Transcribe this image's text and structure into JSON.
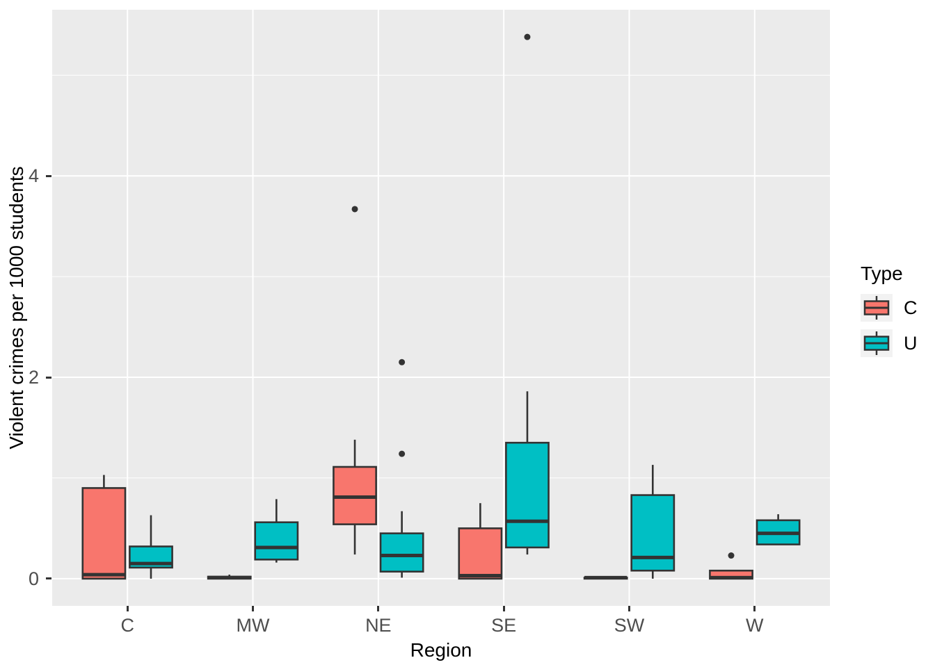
{
  "chart_data": {
    "type": "boxplot",
    "subtype": "grouped-dodged-boxplot",
    "title": "",
    "xlabel": "Region",
    "ylabel": "Violent crimes per 1000 students",
    "categories": [
      "C",
      "MW",
      "NE",
      "SE",
      "SW",
      "W"
    ],
    "y_ticks": [
      0,
      2,
      4
    ],
    "y_tick_labels": [
      "0",
      "2",
      "4"
    ],
    "y_minor_gridlines": [
      1,
      3,
      5
    ],
    "ylim": [
      -0.27,
      5.65
    ],
    "grid": "white major+minor horizontal, white major vertical on gray panel",
    "legend": {
      "title": "Type",
      "position": "right",
      "entries": [
        {
          "label": "C",
          "color": "#F8766D"
        },
        {
          "label": "U",
          "color": "#00BFC4"
        }
      ]
    },
    "series": [
      {
        "name": "C",
        "color": "#F8766D",
        "boxes": [
          {
            "category": "C",
            "whisker_low": 0.0,
            "q1": 0.0,
            "median": 0.04,
            "q3": 0.9,
            "whisker_high": 1.03,
            "outliers": []
          },
          {
            "category": "MW",
            "whisker_low": 0.0,
            "q1": 0.0,
            "median": 0.01,
            "q3": 0.02,
            "whisker_high": 0.04,
            "outliers": []
          },
          {
            "category": "NE",
            "whisker_low": 0.24,
            "q1": 0.54,
            "median": 0.81,
            "q3": 1.11,
            "whisker_high": 1.38,
            "outliers": [
              3.67
            ]
          },
          {
            "category": "SE",
            "whisker_low": 0.0,
            "q1": 0.0,
            "median": 0.03,
            "q3": 0.5,
            "whisker_high": 0.75,
            "outliers": []
          },
          {
            "category": "SW",
            "whisker_low": 0.0,
            "q1": 0.0,
            "median": 0.01,
            "q3": 0.01,
            "whisker_high": 0.01,
            "outliers": []
          },
          {
            "category": "W",
            "whisker_low": 0.0,
            "q1": 0.0,
            "median": 0.01,
            "q3": 0.08,
            "whisker_high": 0.08,
            "outliers": [
              0.23
            ]
          }
        ]
      },
      {
        "name": "U",
        "color": "#00BFC4",
        "boxes": [
          {
            "category": "C",
            "whisker_low": 0.0,
            "q1": 0.11,
            "median": 0.15,
            "q3": 0.32,
            "whisker_high": 0.63,
            "outliers": []
          },
          {
            "category": "MW",
            "whisker_low": 0.16,
            "q1": 0.19,
            "median": 0.31,
            "q3": 0.56,
            "whisker_high": 0.79,
            "outliers": []
          },
          {
            "category": "NE",
            "whisker_low": 0.01,
            "q1": 0.07,
            "median": 0.23,
            "q3": 0.45,
            "whisker_high": 0.67,
            "outliers": [
              1.24,
              2.15
            ]
          },
          {
            "category": "SE",
            "whisker_low": 0.24,
            "q1": 0.31,
            "median": 0.57,
            "q3": 1.35,
            "whisker_high": 1.86,
            "outliers": [
              5.38
            ]
          },
          {
            "category": "SW",
            "whisker_low": 0.0,
            "q1": 0.08,
            "median": 0.21,
            "q3": 0.83,
            "whisker_high": 1.13,
            "outliers": []
          },
          {
            "category": "W",
            "whisker_low": 0.34,
            "q1": 0.34,
            "median": 0.45,
            "q3": 0.58,
            "whisker_high": 0.64,
            "outliers": []
          }
        ]
      }
    ]
  },
  "colors": {
    "background": "#FFFFFF",
    "panel_bg": "#EBEBEB",
    "gridline": "#FFFFFF",
    "box_stroke": "#333333",
    "outlier": "#333333",
    "axis_text": "#4D4D4D",
    "axis_title": "#000000",
    "legend_key_bg": "#F2F2F2"
  }
}
